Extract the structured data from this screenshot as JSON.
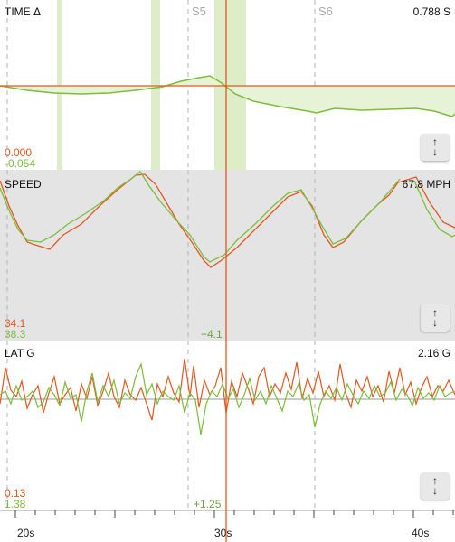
{
  "panels": {
    "time": {
      "title": "TIME Δ",
      "readout": "0.788 S",
      "value_a": "0.000",
      "value_b": "-0.054",
      "sector_a": "S5",
      "sector_b": "S6"
    },
    "speed": {
      "title": "SPEED",
      "readout": "67.8 MPH",
      "value_a": "34.1",
      "value_b": "38.3",
      "delta": "+4.1"
    },
    "latg": {
      "title": "LAT G",
      "readout": "2.16 G",
      "value_a": "0.13",
      "value_b": "1.38",
      "delta": "+1.25"
    }
  },
  "axis": {
    "ticks": [
      "20s",
      "30s",
      "40s"
    ]
  },
  "icons": {
    "expand": "up-down-arrows-icon"
  },
  "colors": {
    "lap_a": "#e2581f",
    "lap_b": "#7cbd3a",
    "band": "#dcedc8",
    "speed_bg": "#e4e4e4"
  }
}
